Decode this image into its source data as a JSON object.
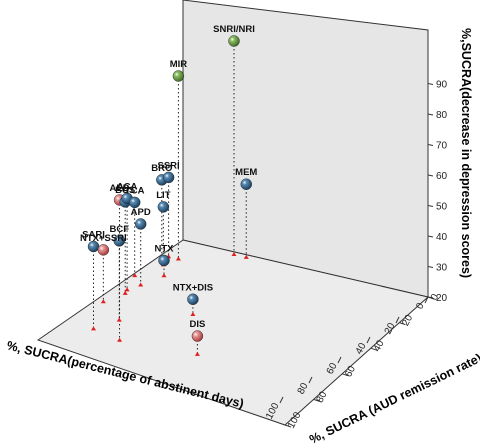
{
  "chart_data": {
    "type": "scatter3d",
    "title": "",
    "axes": {
      "x": {
        "label": "%, SUCRA(percentage of abstinent days)",
        "ticks": [
          0,
          20,
          40,
          60,
          80,
          100
        ],
        "range": [
          0,
          100
        ]
      },
      "y": {
        "label": "%, SUCRA (AUD remission rate)",
        "ticks": [
          0,
          20,
          40,
          60,
          80,
          100
        ],
        "range": [
          0,
          100
        ]
      },
      "z": {
        "label": "%,SUCRA(decrease in depression scores)",
        "ticks": [
          20,
          30,
          40,
          50,
          60,
          70,
          80,
          90
        ],
        "range": [
          20,
          95
        ]
      }
    },
    "points": [
      {
        "label": "AED",
        "x": 86,
        "y": 25,
        "z": 66,
        "color": "#c85a5a"
      },
      {
        "label": "SARI",
        "x": 82,
        "y": 12,
        "z": 47,
        "color": "#2e5f86"
      },
      {
        "label": "BCF",
        "x": 71,
        "y": 16,
        "z": 46,
        "color": "#2e5f86"
      },
      {
        "label": "NTX+SSRI",
        "x": 60,
        "y": 3,
        "z": 37,
        "color": "#c85a5a"
      },
      {
        "label": "BUS",
        "x": 50,
        "y": 6,
        "z": 50,
        "color": "#2e5f86"
      },
      {
        "label": "ACA",
        "x": 47,
        "y": 5,
        "z": 50,
        "color": "#2e5f86"
      },
      {
        "label": "TCA",
        "x": 35,
        "y": 1,
        "z": 44,
        "color": "#2e5f86"
      },
      {
        "label": "APD",
        "x": 41,
        "y": 7,
        "z": 40,
        "color": "#2e5f86"
      },
      {
        "label": "NTX",
        "x": 30,
        "y": 10,
        "z": 25,
        "color": "#2e5f86"
      },
      {
        "label": "NTX+DIS",
        "x": 54,
        "y": 36,
        "z": 25,
        "color": "#2e5f86"
      },
      {
        "label": "DIS",
        "x": 83,
        "y": 55,
        "z": 26,
        "color": "#c85a5a"
      },
      {
        "label": "BRO",
        "x": 18,
        "y": 2,
        "z": 46,
        "color": "#2e5f86"
      },
      {
        "label": "SSRI",
        "x": 15,
        "y": 3,
        "z": 46,
        "color": "#2e5f86"
      },
      {
        "label": "LIT",
        "x": 22,
        "y": 5,
        "z": 39,
        "color": "#2e5f86"
      },
      {
        "label": "MIR",
        "x": 15,
        "y": 7,
        "z": 80,
        "color": "#5f8f3e"
      },
      {
        "label": "SNRI/NRI",
        "x": 2,
        "y": 22,
        "z": 90,
        "color": "#5f8f3e"
      },
      {
        "label": "MEM",
        "x": 2,
        "y": 27,
        "z": 44,
        "color": "#2e5f86"
      }
    ],
    "drop_marker_color": "#e02020",
    "grid": false
  }
}
